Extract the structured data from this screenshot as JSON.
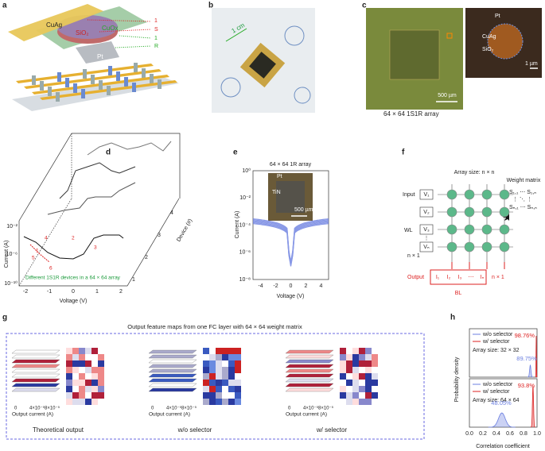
{
  "panel_a": {
    "label": "a",
    "layers": [
      "CuAg",
      "SiO₂",
      "CuOx"
    ],
    "stack": [
      "1",
      "S",
      "1",
      "R"
    ],
    "electrode": "Pt"
  },
  "panel_b": {
    "label": "b",
    "scale": "1 cm"
  },
  "panel_c": {
    "label": "c",
    "inset": [
      "Pt",
      "CuAg",
      "SiO₂"
    ],
    "inset_scale": "1 µm",
    "scale": "500 µm",
    "caption": "64 × 64 1S1R array"
  },
  "panel_d": {
    "label": "d",
    "y_label": "Current (A)",
    "yticks": [
      "10⁻²",
      "10⁻⁶",
      "10⁻¹⁰"
    ],
    "x_label": "Voltage (V)",
    "xticks": [
      "-2",
      "-1",
      "0",
      "1",
      "2"
    ],
    "z_label": "Device (#)",
    "zticks": [
      "1",
      "2",
      "3",
      "4"
    ],
    "steps": [
      "1",
      "2",
      "3",
      "4",
      "5",
      "6"
    ],
    "note": "Different 1S1R devices in a 64 × 64 array"
  },
  "panel_e": {
    "label": "e",
    "title": "64 × 64 1R array",
    "inset": [
      "Pt",
      "TiN"
    ],
    "scale": "500 µm",
    "y_label": "Current (A)",
    "yticks": [
      "10⁰",
      "10⁻²",
      "10⁻⁴",
      "10⁻⁶",
      "10⁻⁸"
    ],
    "x_label": "Voltage (V)",
    "xticks": [
      "-4",
      "-2",
      "0",
      "2",
      "4"
    ]
  },
  "panel_f": {
    "label": "f",
    "title": "Array size: n × n",
    "matrix_title": "Weight matrix",
    "matrix": [
      "S₁,₁ ⋯ S₁,ₙ",
      "⋮   ⋱   ⋮",
      "Sₙ,₁ ⋯ Sₙ,ₙ"
    ],
    "input": "Input",
    "inputs": [
      "V₁",
      "V₂",
      "V₃",
      "⋮",
      "Vₙ"
    ],
    "wl": "WL",
    "input_size": "n × 1",
    "output": "Output",
    "outputs": [
      "I₁",
      "I₂",
      "I₃",
      "⋯",
      "Iₙ"
    ],
    "output_size": "n × 1",
    "bl": "BL"
  },
  "panel_g": {
    "label": "g",
    "title": "Output feature maps from one FC layer with 64 × 64 weight matrix",
    "maps": [
      {
        "ticks": [
          "0",
          "4×10⁻⁵",
          "8×10⁻⁵"
        ],
        "axis": "Output current (A)",
        "caption": "Theoretical output"
      },
      {
        "ticks": [
          "0",
          "4×10⁻⁵",
          "8×10⁻⁵"
        ],
        "axis": "Output current (A)",
        "caption": "w/o selector"
      },
      {
        "ticks": [
          "0",
          "4×10⁻⁵",
          "8×10⁻⁵"
        ],
        "axis": "Output current (A)",
        "caption": "w/ selector"
      }
    ]
  },
  "panel_h": {
    "label": "h",
    "y_label": "Probability density",
    "x_label": "Correlation coefficient",
    "xticks": [
      "0.0",
      "0.2",
      "0.4",
      "0.6",
      "0.8",
      "1.0"
    ],
    "plots": [
      {
        "legend": [
          "w/o selector",
          "w/ selector"
        ],
        "size": "Array size: 32 × 32",
        "red_peak": "98.76%",
        "blue_peak": "89.75%"
      },
      {
        "legend": [
          "w/o selector",
          "w/ selector"
        ],
        "size": "Array size: 64 × 64",
        "red_peak": "93.8%",
        "blue_peak": "48.05%"
      }
    ]
  }
}
